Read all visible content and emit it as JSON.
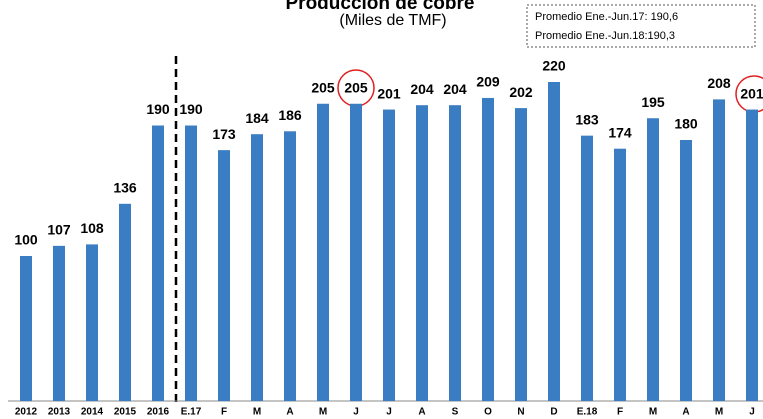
{
  "chart_data": {
    "type": "bar",
    "title": "Producción de cobre",
    "subtitle": "(Miles de TMF)",
    "annotations": [
      "Promedio Ene.-Jun.17: 190,6",
      "Promedio Ene.-Jun.18:190,3"
    ],
    "categories": [
      "2012",
      "2013",
      "2014",
      "2015",
      "2016",
      "E.17",
      "F",
      "M",
      "A",
      "M",
      "J",
      "J",
      "A",
      "S",
      "O",
      "N",
      "D",
      "E.18",
      "F",
      "M",
      "A",
      "M",
      "J"
    ],
    "values": [
      100,
      107,
      108,
      136,
      190,
      190,
      173,
      184,
      186,
      205,
      205,
      201,
      204,
      204,
      209,
      202,
      220,
      183,
      174,
      195,
      180,
      208,
      201
    ],
    "color": "#3a7dc2"
  }
}
